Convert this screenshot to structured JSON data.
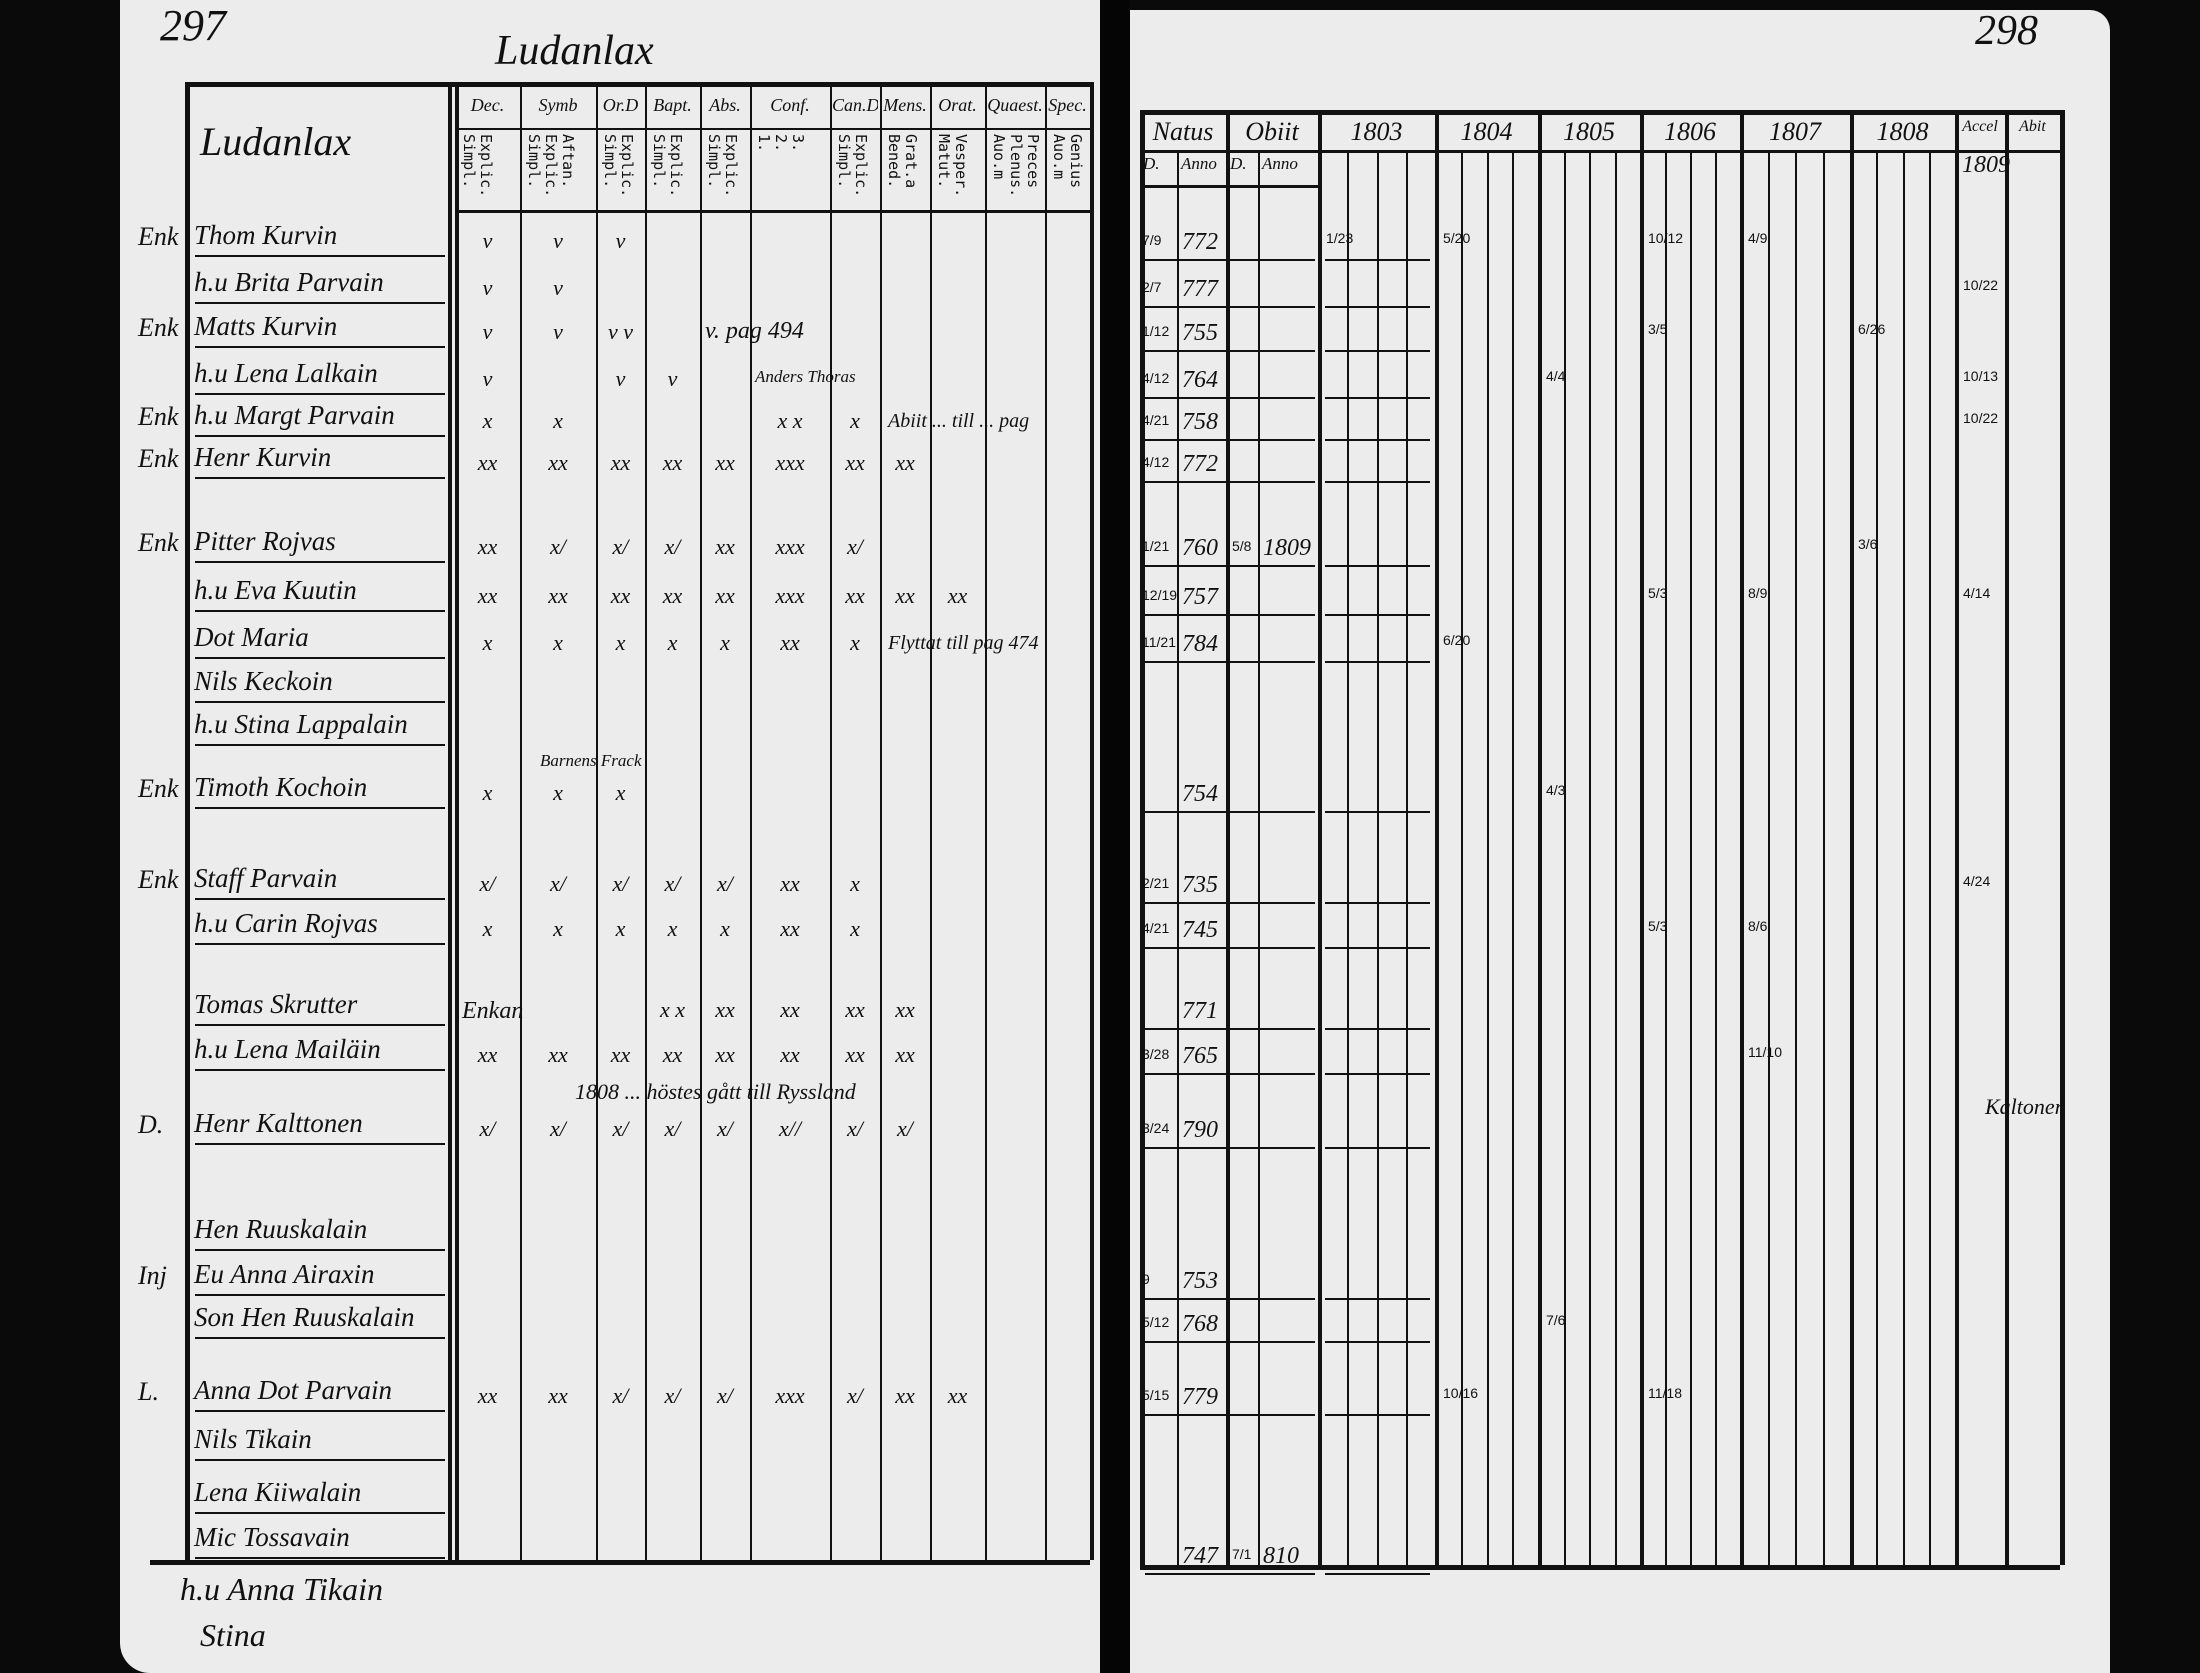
{
  "left_page": {
    "page_number": "297",
    "village_title": "Ludanlax",
    "table_title": "Ludanlax",
    "columns": [
      {
        "label": "Dec.",
        "sub": "Explic.\nSimpl."
      },
      {
        "label": "Symb",
        "sub": "Aftan.\nExplic.\nSimpl."
      },
      {
        "label": "Or.D",
        "sub": "Explic.\nSimpl."
      },
      {
        "label": "Bapt.",
        "sub": "Explic.\nSimpl."
      },
      {
        "label": "Abs.",
        "sub": "Explic.\nSimpl."
      },
      {
        "label": "Conf.",
        "sub": "3.\n2.\n1."
      },
      {
        "label": "Can.D",
        "sub": "Explic.\nSimpl."
      },
      {
        "label": "Mens.",
        "sub": "Grat.a\nBened."
      },
      {
        "label": "Orat.",
        "sub": "Vesper.\nMatut."
      },
      {
        "label": "Quaest.",
        "sub": "Preces\nPlenus.\nAuo.m"
      },
      {
        "label": "Spec.",
        "sub": "Genius\nAuo.m"
      }
    ],
    "rows": [
      {
        "prefix": "Enk",
        "name": "Thom Kurvin",
        "marks": [
          "v",
          "v",
          "v",
          "",
          "",
          "",
          "",
          "",
          "",
          "",
          ""
        ]
      },
      {
        "prefix": "",
        "name": "h.u Brita Parvain",
        "marks": [
          "v",
          "v",
          "",
          "",
          "",
          "",
          "",
          "",
          "",
          "",
          ""
        ]
      },
      {
        "prefix": "Enk",
        "name": "Matts Kurvin",
        "marks": [
          "v",
          "v",
          "v v",
          "",
          "",
          "",
          "",
          "",
          "",
          "",
          ""
        ]
      },
      {
        "prefix": "",
        "name": "h.u Lena Lalkain",
        "marks": [
          "v",
          "",
          "v",
          "v",
          "",
          "",
          "",
          "",
          "",
          "",
          ""
        ]
      },
      {
        "prefix": "Enk",
        "name": "h.u Margt Parvain",
        "marks": [
          "x",
          "x",
          "",
          "",
          "",
          "x x",
          "x",
          "",
          "",
          "",
          ""
        ]
      },
      {
        "prefix": "Enk",
        "name": "Henr Kurvin",
        "marks": [
          "xx",
          "xx",
          "xx",
          "xx",
          "xx",
          "xxx",
          "xx",
          "xx",
          "",
          "",
          ""
        ]
      },
      {
        "prefix": "Enk",
        "name": "Pitter Rojvas",
        "marks": [
          "xx",
          "x/",
          "x/",
          "x/",
          "xx",
          "xxx",
          "x/",
          "",
          "",
          "",
          ""
        ]
      },
      {
        "prefix": "",
        "name": "h.u Eva Kuutin",
        "marks": [
          "xx",
          "xx",
          "xx",
          "xx",
          "xx",
          "xxx",
          "xx",
          "xx",
          "xx",
          "",
          ""
        ]
      },
      {
        "prefix": "",
        "name": "Dot Maria",
        "marks": [
          "x",
          "x",
          "x",
          "x",
          "x",
          "xx",
          "x",
          "",
          "",
          "",
          ""
        ]
      },
      {
        "prefix": "",
        "name": "Nils Keckoin",
        "marks": [
          "",
          "",
          "",
          "",
          "",
          "",
          "",
          "",
          "",
          "",
          ""
        ]
      },
      {
        "prefix": "",
        "name": "h.u Stina Lappalain",
        "marks": [
          "",
          "",
          "",
          "",
          "",
          "",
          "",
          "",
          "",
          "",
          ""
        ]
      },
      {
        "prefix": "Enk",
        "name": "Timoth Kochoin",
        "marks": [
          "x",
          "x",
          "x",
          "",
          "",
          "",
          "",
          "",
          "",
          "",
          ""
        ]
      },
      {
        "prefix": "Enk",
        "name": "Staff Parvain",
        "marks": [
          "x/",
          "x/",
          "x/",
          "x/",
          "x/",
          "xx",
          "x",
          "",
          "",
          "",
          ""
        ]
      },
      {
        "prefix": "",
        "name": "h.u Carin Rojvas",
        "marks": [
          "x",
          "x",
          "x",
          "x",
          "x",
          "xx",
          "x",
          "",
          "",
          "",
          ""
        ]
      },
      {
        "prefix": "",
        "name": "Tomas Skrutter",
        "marks": [
          "",
          "",
          "",
          "x x",
          "xx",
          "xx",
          "xx",
          "xx",
          "",
          "",
          ""
        ]
      },
      {
        "prefix": "",
        "name": "h.u Lena Mailäin",
        "marks": [
          "xx",
          "xx",
          "xx",
          "xx",
          "xx",
          "xx",
          "xx",
          "xx",
          "",
          "",
          ""
        ]
      },
      {
        "prefix": "D.",
        "name": "Henr Kalttonen",
        "marks": [
          "x/",
          "x/",
          "x/",
          "x/",
          "x/",
          "x//",
          "x/",
          "x/",
          "",
          "",
          ""
        ]
      },
      {
        "prefix": "",
        "name": "Hen Ruuskalain",
        "marks": [
          "",
          "",
          "",
          "",
          "",
          "",
          "",
          "",
          "",
          "",
          ""
        ]
      },
      {
        "prefix": "Inj",
        "name": "Eu Anna Airaxin",
        "marks": [
          "",
          "",
          "",
          "",
          "",
          "",
          "",
          "",
          "",
          "",
          ""
        ]
      },
      {
        "prefix": "",
        "name": "Son Hen Ruuskalain",
        "marks": [
          "",
          "",
          "",
          "",
          "",
          "",
          "",
          "",
          "",
          "",
          ""
        ]
      },
      {
        "prefix": "L.",
        "name": "Anna Dot Parvain",
        "marks": [
          "xx",
          "xx",
          "x/",
          "x/",
          "x/",
          "xxx",
          "x/",
          "xx",
          "xx",
          "",
          ""
        ]
      },
      {
        "prefix": "",
        "name": "Nils Tikain",
        "marks": [
          "",
          "",
          "",
          "",
          "",
          "",
          "",
          "",
          "",
          "",
          ""
        ]
      },
      {
        "prefix": "",
        "name": "Lena Kiiwalain",
        "marks": [
          "",
          "",
          "",
          "",
          "",
          "",
          "",
          "",
          "",
          "",
          ""
        ]
      },
      {
        "prefix": "",
        "name": "Mic Tossavain",
        "marks": [
          "",
          "",
          "",
          "",
          "",
          "",
          "",
          "",
          "",
          "",
          ""
        ]
      }
    ],
    "annotations": [
      "v. pag 494",
      "Anders Thoras",
      "Abiit ... till ... pag",
      "Flyttat till pag 474",
      "Barnens Frack",
      "Enkan",
      "1808 ... höstes gått till Ryssland"
    ],
    "below_table": [
      "h.u Anna Tikain",
      "Stina"
    ]
  },
  "right_page": {
    "page_number": "298",
    "columns": [
      "Natus",
      "Obiit",
      "1803",
      "1804",
      "1805",
      "1806",
      "1807",
      "1808",
      "Accel",
      "Abit"
    ],
    "sub_columns": [
      "D.",
      "Anno",
      "D.",
      "Anno"
    ],
    "accel_note": "1809",
    "rows": [
      {
        "natus_day": "7/9",
        "natus_year": "772",
        "obiit_day": "",
        "obiit_year": ""
      },
      {
        "natus_day": "2/7",
        "natus_year": "777",
        "obiit_day": "",
        "obiit_year": ""
      },
      {
        "natus_day": "1/12",
        "natus_year": "755",
        "obiit_day": "",
        "obiit_year": ""
      },
      {
        "natus_day": "4/12",
        "natus_year": "764",
        "obiit_day": "",
        "obiit_year": ""
      },
      {
        "natus_day": "4/21",
        "natus_year": "758",
        "obiit_day": "",
        "obiit_year": ""
      },
      {
        "natus_day": "4/12",
        "natus_year": "772",
        "obiit_day": "",
        "obiit_year": ""
      },
      {
        "natus_day": "1/21",
        "natus_year": "760",
        "obiit_day": "5/8",
        "obiit_year": "1809"
      },
      {
        "natus_day": "12/19",
        "natus_year": "757",
        "obiit_day": "",
        "obiit_year": ""
      },
      {
        "natus_day": "11/21",
        "natus_year": "784",
        "obiit_day": "",
        "obiit_year": ""
      },
      {
        "natus_day": "",
        "natus_year": "754",
        "obiit_day": "",
        "obiit_year": ""
      },
      {
        "natus_day": "2/21",
        "natus_year": "735",
        "obiit_day": "",
        "obiit_year": ""
      },
      {
        "natus_day": "4/21",
        "natus_year": "745",
        "obiit_day": "",
        "obiit_year": ""
      },
      {
        "natus_day": "",
        "natus_year": "771",
        "obiit_day": "",
        "obiit_year": ""
      },
      {
        "natus_day": "3/28",
        "natus_year": "765",
        "obiit_day": "",
        "obiit_year": ""
      },
      {
        "natus_day": "3/24",
        "natus_year": "790",
        "obiit_day": "",
        "obiit_year": ""
      },
      {
        "natus_day": "9",
        "natus_year": "753",
        "obiit_day": "",
        "obiit_year": ""
      },
      {
        "natus_day": "5/12",
        "natus_year": "768",
        "obiit_day": "",
        "obiit_year": ""
      },
      {
        "natus_day": "5/15",
        "natus_year": "779",
        "obiit_day": "",
        "obiit_year": ""
      },
      {
        "natus_day": "",
        "natus_year": "747",
        "obiit_day": "7/1",
        "obiit_year": "810"
      }
    ],
    "exam_marks": [
      {
        "col": "1803",
        "row": 0,
        "text": "1/23"
      },
      {
        "col": "1804",
        "row": 0,
        "text": "5/20"
      },
      {
        "col": "1806",
        "row": 0,
        "text": "10/12"
      },
      {
        "col": "1807",
        "row": 0,
        "text": "4/9"
      },
      {
        "col": "1805",
        "row": 3,
        "text": "4/4"
      },
      {
        "col": "1806",
        "row": 2,
        "text": "3/5"
      },
      {
        "col": "1808",
        "row": 2,
        "text": "6/26"
      },
      {
        "col": "1808",
        "row": 6,
        "text": "3/6"
      },
      {
        "col": "1807",
        "row": 7,
        "text": "8/9"
      },
      {
        "col": "1804",
        "row": 8,
        "text": "6/20"
      },
      {
        "col": "1806",
        "row": 7,
        "text": "5/3"
      },
      {
        "col": "1807",
        "row": 11,
        "text": "8/6"
      },
      {
        "col": "1806",
        "row": 11,
        "text": "5/3"
      },
      {
        "col": "1805",
        "row": 9,
        "text": "4/3"
      },
      {
        "col": "1807",
        "row": 13,
        "text": "11/10"
      },
      {
        "col": "1805",
        "row": 16,
        "text": "7/6"
      },
      {
        "col": "1804",
        "row": 17,
        "text": "10/16"
      },
      {
        "col": "1806",
        "row": 17,
        "text": "11/18"
      },
      {
        "col": "Accel",
        "row": 1,
        "text": "10/22"
      },
      {
        "col": "Accel",
        "row": 3,
        "text": "10/13"
      },
      {
        "col": "Accel",
        "row": 4,
        "text": "10/22"
      },
      {
        "col": "Accel",
        "row": 7,
        "text": "4/14"
      },
      {
        "col": "Accel",
        "row": 10,
        "text": "4/24"
      }
    ],
    "abit_note": "Kaltoner"
  }
}
